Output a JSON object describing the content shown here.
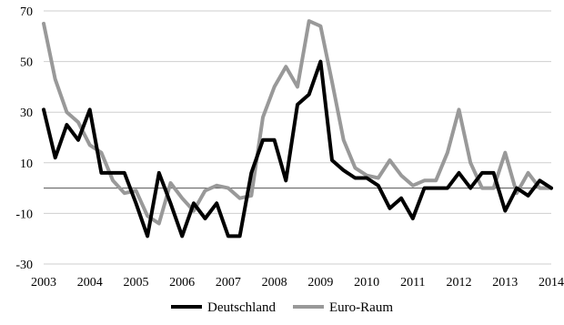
{
  "chart_data": {
    "type": "line",
    "title": "",
    "xlabel": "",
    "ylabel": "",
    "ylim": [
      -30,
      70
    ],
    "yticks": [
      -30,
      -10,
      10,
      30,
      50,
      70
    ],
    "xlim": [
      2003,
      2014
    ],
    "xticks": [
      2003,
      2004,
      2005,
      2006,
      2007,
      2008,
      2009,
      2010,
      2011,
      2012,
      2013,
      2014
    ],
    "grid": "horizontal",
    "legend_position": "bottom",
    "colors": {
      "Deutschland": "#000000",
      "Euro-Raum": "#999999"
    },
    "series": [
      {
        "name": "Deutschland",
        "points": [
          [
            2003.0,
            31
          ],
          [
            2003.25,
            12
          ],
          [
            2003.5,
            25
          ],
          [
            2003.75,
            19
          ],
          [
            2004.0,
            31
          ],
          [
            2004.25,
            6
          ],
          [
            2004.5,
            6
          ],
          [
            2004.75,
            6
          ],
          [
            2005.0,
            -6
          ],
          [
            2005.25,
            -19
          ],
          [
            2005.5,
            6
          ],
          [
            2005.75,
            -6
          ],
          [
            2006.0,
            -19
          ],
          [
            2006.25,
            -6
          ],
          [
            2006.5,
            -12
          ],
          [
            2006.75,
            -6
          ],
          [
            2007.0,
            -19
          ],
          [
            2007.25,
            -19
          ],
          [
            2007.5,
            6
          ],
          [
            2007.75,
            19
          ],
          [
            2008.0,
            19
          ],
          [
            2008.25,
            3
          ],
          [
            2008.5,
            33
          ],
          [
            2008.75,
            37
          ],
          [
            2009.0,
            50
          ],
          [
            2009.25,
            11
          ],
          [
            2009.5,
            7
          ],
          [
            2009.75,
            4
          ],
          [
            2010.0,
            4
          ],
          [
            2010.25,
            1
          ],
          [
            2010.5,
            -8
          ],
          [
            2010.75,
            -4
          ],
          [
            2011.0,
            -12
          ],
          [
            2011.25,
            0
          ],
          [
            2011.5,
            0
          ],
          [
            2011.75,
            0
          ],
          [
            2012.0,
            6
          ],
          [
            2012.25,
            0
          ],
          [
            2012.5,
            6
          ],
          [
            2012.75,
            6
          ],
          [
            2013.0,
            -9
          ],
          [
            2013.25,
            0
          ],
          [
            2013.5,
            -3
          ],
          [
            2013.75,
            3
          ],
          [
            2014.0,
            0
          ]
        ]
      },
      {
        "name": "Euro-Raum",
        "points": [
          [
            2003.0,
            65
          ],
          [
            2003.25,
            43
          ],
          [
            2003.5,
            30
          ],
          [
            2003.75,
            26
          ],
          [
            2004.0,
            17
          ],
          [
            2004.25,
            14
          ],
          [
            2004.5,
            3
          ],
          [
            2004.75,
            -2
          ],
          [
            2005.0,
            -1
          ],
          [
            2005.25,
            -11
          ],
          [
            2005.5,
            -14
          ],
          [
            2005.75,
            2
          ],
          [
            2006.0,
            -4
          ],
          [
            2006.25,
            -9
          ],
          [
            2006.5,
            -1
          ],
          [
            2006.75,
            1
          ],
          [
            2007.0,
            0
          ],
          [
            2007.25,
            -4
          ],
          [
            2007.5,
            -3
          ],
          [
            2007.75,
            28
          ],
          [
            2008.0,
            40
          ],
          [
            2008.25,
            48
          ],
          [
            2008.5,
            40
          ],
          [
            2008.75,
            66
          ],
          [
            2009.0,
            64
          ],
          [
            2009.25,
            42
          ],
          [
            2009.5,
            19
          ],
          [
            2009.75,
            8
          ],
          [
            2010.0,
            5
          ],
          [
            2010.25,
            4
          ],
          [
            2010.5,
            11
          ],
          [
            2010.75,
            5
          ],
          [
            2011.0,
            1
          ],
          [
            2011.25,
            3
          ],
          [
            2011.5,
            3
          ],
          [
            2011.75,
            14
          ],
          [
            2012.0,
            31
          ],
          [
            2012.25,
            10
          ],
          [
            2012.5,
            0
          ],
          [
            2012.75,
            0
          ],
          [
            2013.0,
            14
          ],
          [
            2013.25,
            -2
          ],
          [
            2013.5,
            6
          ],
          [
            2013.75,
            0
          ],
          [
            2014.0,
            0
          ]
        ]
      }
    ]
  }
}
